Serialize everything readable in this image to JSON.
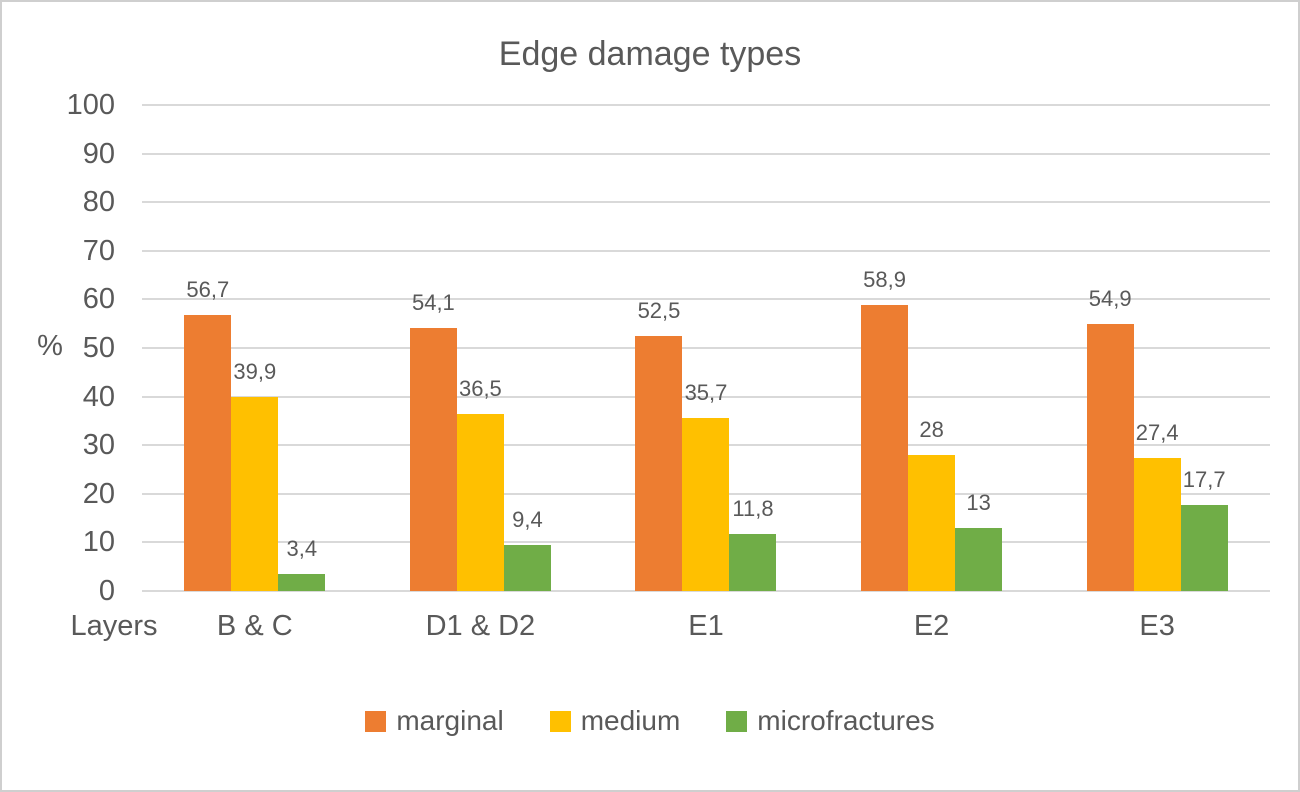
{
  "chart_data": {
    "type": "bar",
    "title": "Edge damage types",
    "xlabel": "Layers",
    "ylabel": "%",
    "categories": [
      "B & C",
      "D1 & D2",
      "E1",
      "E2",
      "E3"
    ],
    "series": [
      {
        "name": "marginal",
        "color": "#ED7D31",
        "values": [
          56.7,
          54.1,
          52.5,
          58.9,
          54.9
        ],
        "labels": [
          "56,7",
          "54,1",
          "52,5",
          "58,9",
          "54,9"
        ]
      },
      {
        "name": "medium",
        "color": "#FFC000",
        "values": [
          39.9,
          36.5,
          35.7,
          28,
          27.4
        ],
        "labels": [
          "39,9",
          "36,5",
          "35,7",
          "28",
          "27,4"
        ]
      },
      {
        "name": "microfractures",
        "color": "#70AD47",
        "values": [
          3.4,
          9.4,
          11.8,
          13,
          17.7
        ],
        "labels": [
          "3,4",
          "9,4",
          "11,8",
          "13",
          "17,7"
        ]
      }
    ],
    "ylim": [
      0,
      100
    ],
    "ytick_step": 10,
    "grid": true,
    "legend_position": "bottom",
    "decimal_separator": ","
  },
  "colors": {
    "text": "#595959",
    "gridline": "#D9D9D9",
    "border": "#CFCFCF",
    "background": "#FFFFFF"
  }
}
